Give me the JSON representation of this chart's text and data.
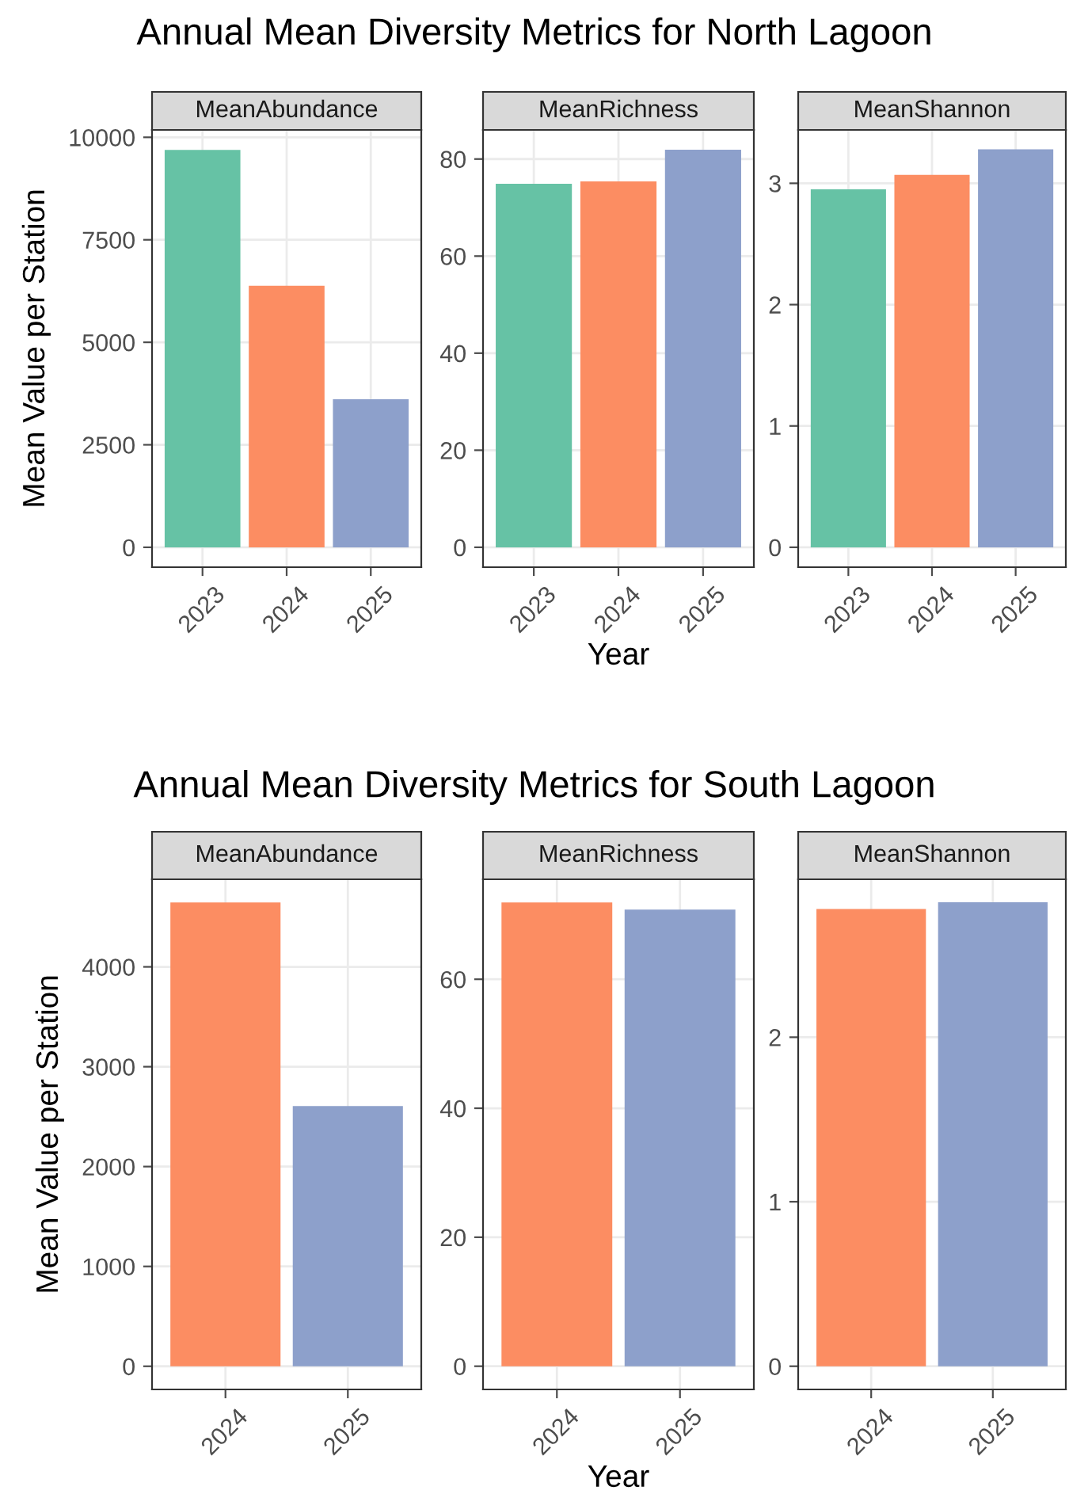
{
  "chart_data": [
    {
      "type": "bar",
      "title": "MeanAbundance",
      "annotations": [
        "Annual Mean Diversity Metrics for North Lagoon"
      ],
      "ylabel": "Mean Value per Station",
      "categories": [
        "2023",
        "2024",
        "2025"
      ],
      "values": [
        9690,
        6380,
        3610
      ],
      "colors": [
        "#66c2a5",
        "#fc8d62",
        "#8da0cb"
      ],
      "ylim": [
        -485,
        10180
      ],
      "yticks": [
        0,
        2500,
        5000,
        7500,
        10000
      ],
      "grid": true
    },
    {
      "type": "bar",
      "title": "MeanRichness",
      "xlabel": "Year",
      "categories": [
        "2023",
        "2024",
        "2025"
      ],
      "values": [
        74.9,
        75.4,
        81.9
      ],
      "colors": [
        "#66c2a5",
        "#fc8d62",
        "#8da0cb"
      ],
      "ylim": [
        -4.1,
        86
      ],
      "yticks": [
        0,
        20,
        40,
        60,
        80
      ],
      "grid": true
    },
    {
      "type": "bar",
      "title": "MeanShannon",
      "categories": [
        "2023",
        "2024",
        "2025"
      ],
      "values": [
        2.95,
        3.07,
        3.28
      ],
      "colors": [
        "#66c2a5",
        "#fc8d62",
        "#8da0cb"
      ],
      "ylim": [
        -0.164,
        3.44
      ],
      "yticks": [
        0,
        1,
        2,
        3
      ],
      "grid": true
    },
    {
      "type": "bar",
      "title": "MeanAbundance",
      "annotations": [
        "Annual Mean Diversity Metrics for South Lagoon"
      ],
      "ylabel": "Mean Value per Station",
      "categories": [
        "2024",
        "2025"
      ],
      "values": [
        4645,
        2607
      ],
      "colors": [
        "#fc8d62",
        "#8da0cb"
      ],
      "ylim": [
        -232,
        4877
      ],
      "yticks": [
        0,
        1000,
        2000,
        3000,
        4000
      ],
      "grid": true
    },
    {
      "type": "bar",
      "title": "MeanRichness",
      "xlabel": "Year",
      "categories": [
        "2024",
        "2025"
      ],
      "values": [
        71.9,
        70.8
      ],
      "colors": [
        "#fc8d62",
        "#8da0cb"
      ],
      "ylim": [
        -3.6,
        75.5
      ],
      "yticks": [
        0,
        20,
        40,
        60
      ],
      "grid": true
    },
    {
      "type": "bar",
      "title": "MeanShannon",
      "categories": [
        "2024",
        "2025"
      ],
      "values": [
        2.78,
        2.82
      ],
      "colors": [
        "#fc8d62",
        "#8da0cb"
      ],
      "ylim": [
        -0.141,
        2.96
      ],
      "yticks": [
        0,
        1,
        2
      ],
      "grid": true
    }
  ]
}
